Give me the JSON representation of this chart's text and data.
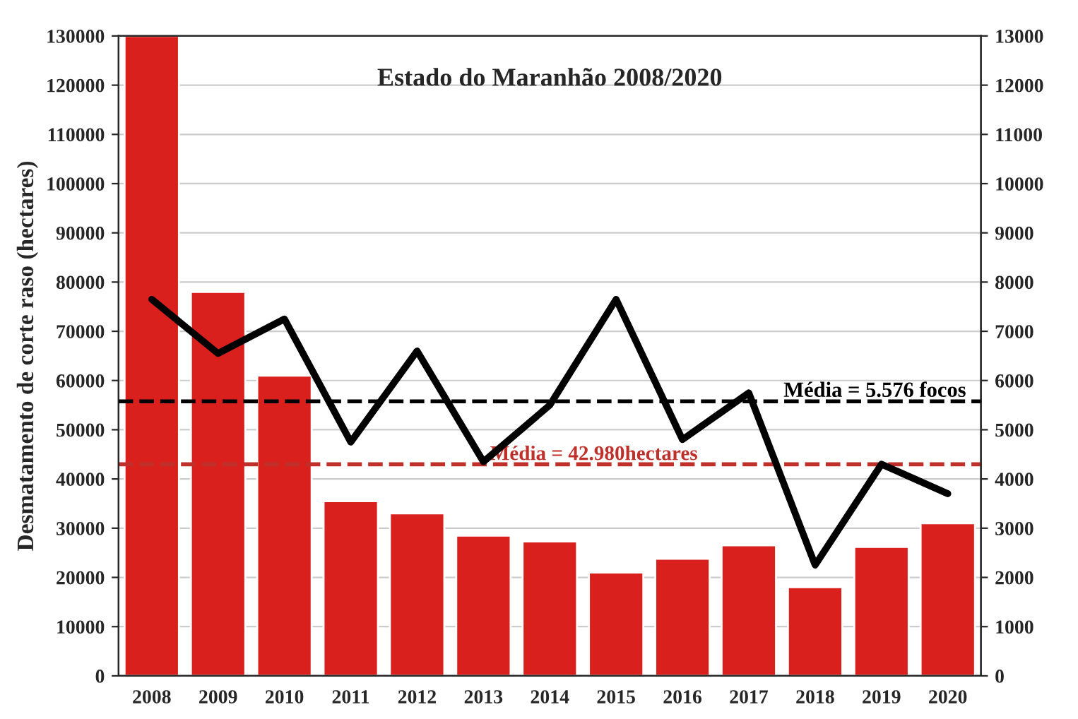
{
  "chart_data": {
    "type": "bar",
    "title": "Estado do Maranhão 2008/2020",
    "ylabel": "Desmatamento de corte raso (hectares)",
    "categories": [
      "2008",
      "2009",
      "2010",
      "2011",
      "2012",
      "2013",
      "2014",
      "2015",
      "2016",
      "2017",
      "2018",
      "2019",
      "2020"
    ],
    "series": [
      {
        "color": "#d9201c",
        "values": [
          130000,
          78000,
          61000,
          35500,
          33000,
          28500,
          27300,
          21000,
          23800,
          26500,
          18000,
          26200,
          31000
        ]
      },
      {
        "type": "line",
        "axis": "y2",
        "color": "#000000",
        "values": [
          7650,
          6550,
          7250,
          4750,
          6600,
          4350,
          5500,
          7650,
          4800,
          5750,
          2250,
          4300,
          3700
        ]
      }
    ],
    "ylim": [
      0,
      130000
    ],
    "yticks": [
      0,
      10000,
      20000,
      30000,
      40000,
      50000,
      60000,
      70000,
      80000,
      90000,
      100000,
      110000,
      120000,
      130000
    ],
    "y2lim": [
      0,
      13000
    ],
    "y2ticks": [
      0,
      1000,
      2000,
      3000,
      4000,
      5000,
      6000,
      7000,
      8000,
      9000,
      10000,
      11000,
      12000,
      13000
    ],
    "ref_lines": [
      {
        "axis": "y2",
        "value": 5576,
        "label": "Média = 5.576 focos",
        "color": "#000000",
        "line_style": "dashed"
      },
      {
        "axis": "y",
        "value": 42980,
        "label": "Média = 42.980hectares",
        "color": "#c0302a",
        "line_style": "dashed"
      }
    ],
    "grid": "y",
    "legend": false
  }
}
